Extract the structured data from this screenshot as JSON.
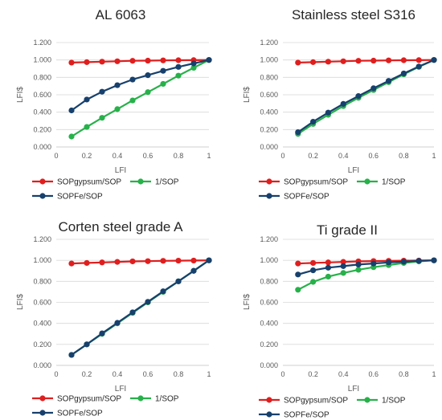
{
  "colors": {
    "red": "#e01e1e",
    "green": "#27b14a",
    "navy": "#17406d"
  },
  "chart_data": [
    {
      "type": "line",
      "title": "AL 6063",
      "xlabel": "LFI",
      "ylabel": "LFI$",
      "xlim": [
        0,
        1
      ],
      "ylim": [
        0,
        1.2
      ],
      "x_ticks": [
        "0",
        "0.2",
        "0.4",
        "0.6",
        "0.8",
        "1"
      ],
      "y_ticks": [
        "0.000",
        "0.200",
        "0.400",
        "0.600",
        "0.800",
        "1.000",
        "1.200"
      ],
      "grid": true,
      "legend_position": "bottom",
      "series": [
        {
          "name": "SOPgypsum/SOP",
          "color": "#e01e1e",
          "x": [
            0.1,
            0.2,
            0.3,
            0.4,
            0.5,
            0.6,
            0.7,
            0.8,
            0.9,
            1.0
          ],
          "y": [
            0.97,
            0.975,
            0.98,
            0.985,
            0.99,
            0.992,
            0.995,
            0.997,
            0.998,
            1.0
          ]
        },
        {
          "name": "1/SOP",
          "color": "#27b14a",
          "x": [
            0.1,
            0.2,
            0.3,
            0.4,
            0.5,
            0.6,
            0.7,
            0.8,
            0.9,
            1.0
          ],
          "y": [
            0.12,
            0.23,
            0.335,
            0.435,
            0.535,
            0.63,
            0.725,
            0.82,
            0.91,
            1.0
          ]
        },
        {
          "name": "SOPFe/SOP",
          "color": "#17406d",
          "x": [
            0.1,
            0.2,
            0.3,
            0.4,
            0.5,
            0.6,
            0.7,
            0.8,
            0.9,
            1.0
          ],
          "y": [
            0.42,
            0.545,
            0.635,
            0.71,
            0.775,
            0.825,
            0.875,
            0.92,
            0.96,
            1.0
          ]
        }
      ]
    },
    {
      "type": "line",
      "title": "Stainless steel S316",
      "xlabel": "LFI",
      "ylabel": "LFI$",
      "xlim": [
        0,
        1
      ],
      "ylim": [
        0,
        1.2
      ],
      "x_ticks": [
        "0",
        "0.2",
        "0.4",
        "0.6",
        "0.8",
        "1"
      ],
      "y_ticks": [
        "0.000",
        "0.200",
        "0.400",
        "0.600",
        "0.800",
        "1.000",
        "1.200"
      ],
      "grid": true,
      "legend_position": "bottom",
      "series": [
        {
          "name": "SOPgypsum/SOP",
          "color": "#e01e1e",
          "x": [
            0.1,
            0.2,
            0.3,
            0.4,
            0.5,
            0.6,
            0.7,
            0.8,
            0.9,
            1.0
          ],
          "y": [
            0.97,
            0.975,
            0.98,
            0.985,
            0.99,
            0.992,
            0.995,
            0.997,
            0.998,
            1.0
          ]
        },
        {
          "name": "1/SOP",
          "color": "#27b14a",
          "x": [
            0.1,
            0.2,
            0.3,
            0.4,
            0.5,
            0.6,
            0.7,
            0.8,
            0.9,
            1.0
          ],
          "y": [
            0.15,
            0.265,
            0.37,
            0.47,
            0.565,
            0.655,
            0.745,
            0.835,
            0.92,
            1.0
          ]
        },
        {
          "name": "SOPFe/SOP",
          "color": "#17406d",
          "x": [
            0.1,
            0.2,
            0.3,
            0.4,
            0.5,
            0.6,
            0.7,
            0.8,
            0.9,
            1.0
          ],
          "y": [
            0.17,
            0.29,
            0.395,
            0.495,
            0.585,
            0.675,
            0.76,
            0.845,
            0.925,
            1.0
          ]
        }
      ]
    },
    {
      "type": "line",
      "title": "Corten steel grade A",
      "xlabel": "LFI",
      "ylabel": "LFI$",
      "xlim": [
        0,
        1
      ],
      "ylim": [
        0,
        1.2
      ],
      "x_ticks": [
        "0",
        "0.2",
        "0.4",
        "0.6",
        "0.8",
        "1"
      ],
      "y_ticks": [
        "0.000",
        "0.200",
        "0.400",
        "0.600",
        "0.800",
        "1.000",
        "1.200"
      ],
      "grid": true,
      "legend_position": "bottom",
      "series": [
        {
          "name": "SOPgypsum/SOP",
          "color": "#e01e1e",
          "x": [
            0.1,
            0.2,
            0.3,
            0.4,
            0.5,
            0.6,
            0.7,
            0.8,
            0.9,
            1.0
          ],
          "y": [
            0.97,
            0.975,
            0.98,
            0.985,
            0.99,
            0.992,
            0.995,
            0.997,
            0.998,
            1.0
          ]
        },
        {
          "name": "1/SOP",
          "color": "#27b14a",
          "x": [
            0.1,
            0.2,
            0.3,
            0.4,
            0.5,
            0.6,
            0.7,
            0.8,
            0.9,
            1.0
          ],
          "y": [
            0.1,
            0.2,
            0.3,
            0.4,
            0.5,
            0.6,
            0.7,
            0.8,
            0.9,
            1.0
          ]
        },
        {
          "name": "SOPFe/SOP",
          "color": "#17406d",
          "x": [
            0.1,
            0.2,
            0.3,
            0.4,
            0.5,
            0.6,
            0.7,
            0.8,
            0.9,
            1.0
          ],
          "y": [
            0.1,
            0.2,
            0.305,
            0.405,
            0.505,
            0.605,
            0.705,
            0.8,
            0.9,
            1.0
          ]
        }
      ]
    },
    {
      "type": "line",
      "title": "Ti grade II",
      "xlabel": "LFI",
      "ylabel": "LFI$",
      "xlim": [
        0,
        1
      ],
      "ylim": [
        0,
        1.2
      ],
      "x_ticks": [
        "0",
        "0.2",
        "0.4",
        "0.6",
        "0.8",
        "1"
      ],
      "y_ticks": [
        "0.000",
        "0.200",
        "0.400",
        "0.600",
        "0.800",
        "1.000",
        "1.200"
      ],
      "grid": true,
      "legend_position": "bottom",
      "series": [
        {
          "name": "SOPgypsum/SOP",
          "color": "#e01e1e",
          "x": [
            0.1,
            0.2,
            0.3,
            0.4,
            0.5,
            0.6,
            0.7,
            0.8,
            0.9,
            1.0
          ],
          "y": [
            0.97,
            0.975,
            0.98,
            0.985,
            0.99,
            0.993,
            0.995,
            0.997,
            0.998,
            1.0
          ]
        },
        {
          "name": "1/SOP",
          "color": "#27b14a",
          "x": [
            0.1,
            0.2,
            0.3,
            0.4,
            0.5,
            0.6,
            0.7,
            0.8,
            0.9,
            1.0
          ],
          "y": [
            0.72,
            0.795,
            0.845,
            0.88,
            0.91,
            0.935,
            0.955,
            0.975,
            0.99,
            1.0
          ]
        },
        {
          "name": "SOPFe/SOP",
          "color": "#17406d",
          "x": [
            0.1,
            0.2,
            0.3,
            0.4,
            0.5,
            0.6,
            0.7,
            0.8,
            0.9,
            1.0
          ],
          "y": [
            0.865,
            0.905,
            0.93,
            0.945,
            0.96,
            0.97,
            0.98,
            0.987,
            0.995,
            1.0
          ]
        }
      ]
    }
  ]
}
